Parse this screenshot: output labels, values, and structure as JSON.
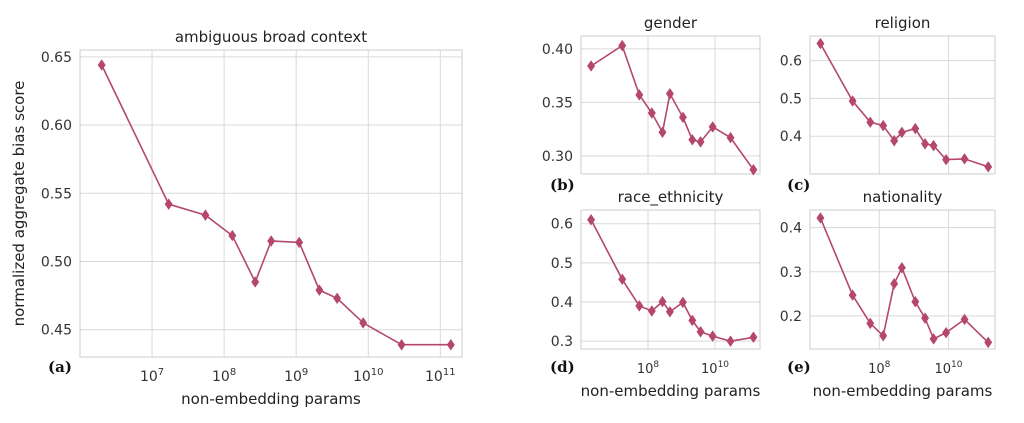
{
  "colors": {
    "series": "#b5476d",
    "grid": "#d9d9d9",
    "frame": "#cccccc"
  },
  "chart_data": [
    {
      "type": "line",
      "panel_letter": "(a)",
      "title": "ambiguous broad context",
      "xlabel": "non-embedding params",
      "ylabel": "normalized aggregate bias score",
      "xscale": "log",
      "xlim": [
        1000000,
        200000000000
      ],
      "ylim": [
        0.43,
        0.655
      ],
      "x_ticks": [
        {
          "value": 10000000,
          "base": "10",
          "exp": "7"
        },
        {
          "value": 100000000,
          "base": "10",
          "exp": "8"
        },
        {
          "value": 1000000000,
          "base": "10",
          "exp": "9"
        },
        {
          "value": 10000000000,
          "base": "10",
          "exp": "10"
        },
        {
          "value": 100000000000,
          "base": "10",
          "exp": "11"
        }
      ],
      "y_ticks": [
        {
          "value": 0.45,
          "label": "0.45"
        },
        {
          "value": 0.5,
          "label": "0.50"
        },
        {
          "value": 0.55,
          "label": "0.55"
        },
        {
          "value": 0.6,
          "label": "0.60"
        },
        {
          "value": 0.65,
          "label": "0.65"
        }
      ],
      "x": [
        2000000,
        17000000,
        55000000,
        130000000,
        270000000,
        450000000,
        1100000000,
        2100000000,
        3700000000,
        8500000000,
        29000000000,
        140000000000
      ],
      "y": [
        0.644,
        0.542,
        0.534,
        0.519,
        0.485,
        0.515,
        0.514,
        0.479,
        0.473,
        0.455,
        0.439,
        0.439
      ],
      "grid": true
    },
    {
      "type": "line",
      "panel_letter": "(b)",
      "title": "gender",
      "xlabel": "",
      "ylabel": "",
      "xscale": "log",
      "xlim": [
        1000000,
        220000000000
      ],
      "ylim": [
        0.283,
        0.412
      ],
      "x_ticks": [
        {
          "value": 100000000,
          "base": "10",
          "exp": "8"
        },
        {
          "value": 10000000000,
          "base": "10",
          "exp": "10"
        }
      ],
      "show_x_tick_labels": false,
      "y_ticks": [
        {
          "value": 0.3,
          "label": "0.30"
        },
        {
          "value": 0.35,
          "label": "0.35"
        },
        {
          "value": 0.4,
          "label": "0.40"
        }
      ],
      "x": [
        2000000,
        17000000,
        55000000,
        130000000,
        270000000,
        450000000,
        1100000000,
        2100000000,
        3700000000,
        8500000000,
        29000000000,
        140000000000
      ],
      "y": [
        0.384,
        0.403,
        0.357,
        0.34,
        0.322,
        0.358,
        0.336,
        0.315,
        0.313,
        0.327,
        0.317,
        0.287
      ],
      "grid": true
    },
    {
      "type": "line",
      "panel_letter": "(c)",
      "title": "religion",
      "xlabel": "",
      "ylabel": "",
      "xscale": "log",
      "xlim": [
        1000000,
        220000000000
      ],
      "ylim": [
        0.3,
        0.665
      ],
      "x_ticks": [
        {
          "value": 100000000,
          "base": "10",
          "exp": "8"
        },
        {
          "value": 10000000000,
          "base": "10",
          "exp": "10"
        }
      ],
      "show_x_tick_labels": false,
      "y_ticks": [
        {
          "value": 0.4,
          "label": "0.4"
        },
        {
          "value": 0.5,
          "label": "0.5"
        },
        {
          "value": 0.6,
          "label": "0.6"
        }
      ],
      "x": [
        2000000,
        17000000,
        55000000,
        130000000,
        270000000,
        450000000,
        1100000000,
        2100000000,
        3700000000,
        8500000000,
        29000000000,
        140000000000
      ],
      "y": [
        0.645,
        0.493,
        0.437,
        0.428,
        0.388,
        0.41,
        0.42,
        0.38,
        0.375,
        0.338,
        0.34,
        0.319
      ],
      "grid": true
    },
    {
      "type": "line",
      "panel_letter": "(d)",
      "title": "race_ethnicity",
      "xlabel": "non-embedding params",
      "ylabel": "",
      "xscale": "log",
      "xlim": [
        1000000,
        220000000000
      ],
      "ylim": [
        0.28,
        0.635
      ],
      "x_ticks": [
        {
          "value": 100000000,
          "base": "10",
          "exp": "8"
        },
        {
          "value": 10000000000,
          "base": "10",
          "exp": "10"
        }
      ],
      "show_x_tick_labels": true,
      "y_ticks": [
        {
          "value": 0.3,
          "label": "0.3"
        },
        {
          "value": 0.4,
          "label": "0.4"
        },
        {
          "value": 0.5,
          "label": "0.5"
        },
        {
          "value": 0.6,
          "label": "0.6"
        }
      ],
      "x": [
        2000000,
        17000000,
        55000000,
        130000000,
        270000000,
        450000000,
        1100000000,
        2100000000,
        3700000000,
        8500000000,
        29000000000,
        140000000000
      ],
      "y": [
        0.61,
        0.458,
        0.39,
        0.377,
        0.401,
        0.375,
        0.399,
        0.353,
        0.324,
        0.313,
        0.3,
        0.31
      ],
      "grid": true
    },
    {
      "type": "line",
      "panel_letter": "(e)",
      "title": "nationality",
      "xlabel": "non-embedding params",
      "ylabel": "",
      "xscale": "log",
      "xlim": [
        1000000,
        220000000000
      ],
      "ylim": [
        0.125,
        0.44
      ],
      "x_ticks": [
        {
          "value": 100000000,
          "base": "10",
          "exp": "8"
        },
        {
          "value": 10000000000,
          "base": "10",
          "exp": "10"
        }
      ],
      "show_x_tick_labels": true,
      "y_ticks": [
        {
          "value": 0.2,
          "label": "0.2"
        },
        {
          "value": 0.3,
          "label": "0.3"
        },
        {
          "value": 0.4,
          "label": "0.4"
        }
      ],
      "x": [
        2000000,
        17000000,
        55000000,
        130000000,
        270000000,
        450000000,
        1100000000,
        2100000000,
        3700000000,
        8500000000,
        29000000000,
        140000000000
      ],
      "y": [
        0.422,
        0.247,
        0.183,
        0.155,
        0.273,
        0.309,
        0.232,
        0.195,
        0.148,
        0.162,
        0.192,
        0.14
      ],
      "grid": true
    }
  ]
}
